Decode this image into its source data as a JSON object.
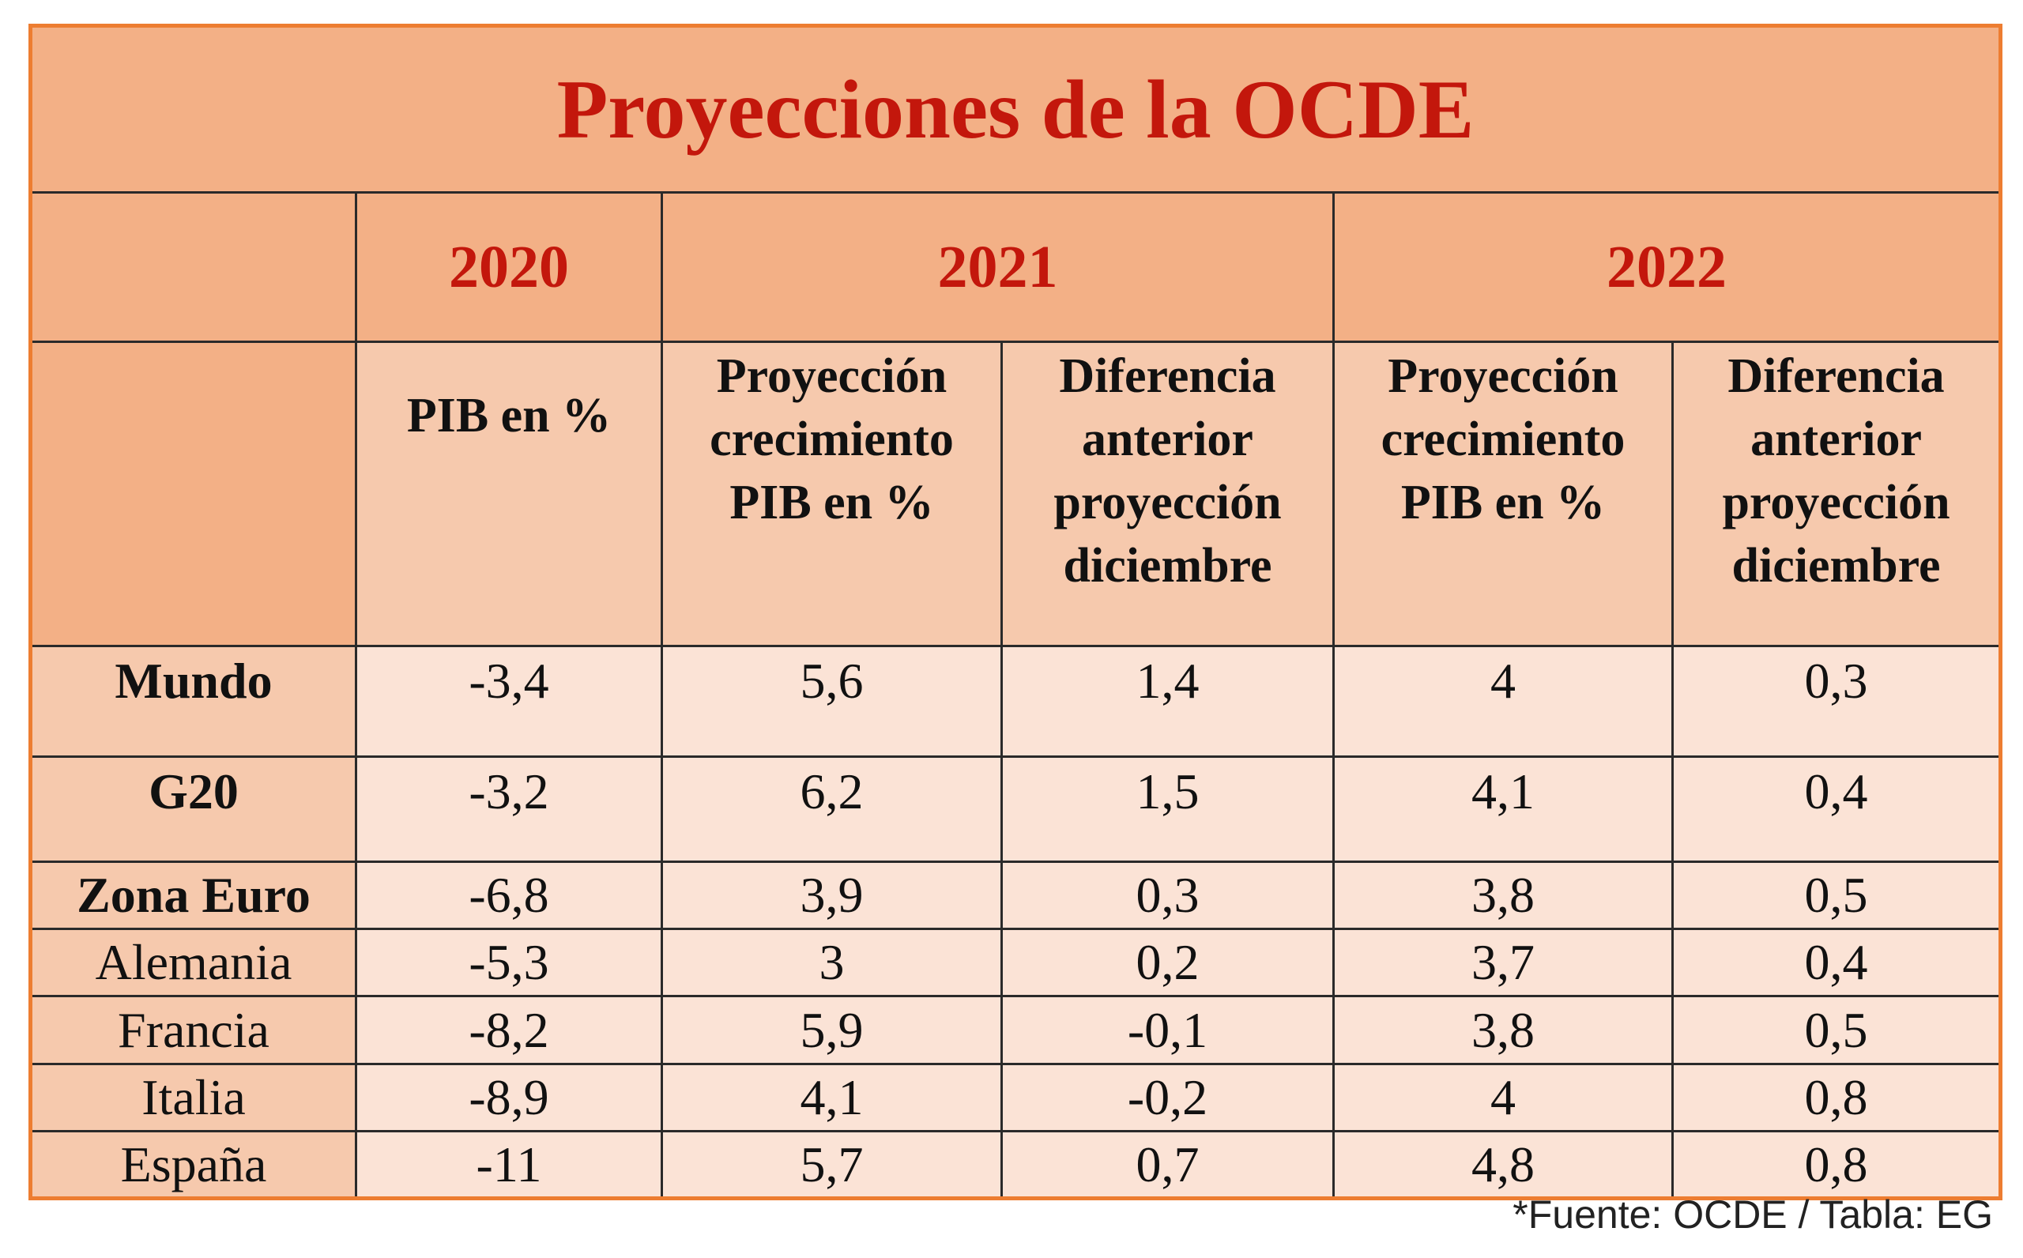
{
  "title": "Proyecciones de la OCDE",
  "years": [
    "2020",
    "2021",
    "2022"
  ],
  "subheaders": {
    "pib_2020": "PIB en %",
    "proj_2021": [
      "Proyección",
      "crecimiento",
      "PIB en %"
    ],
    "diff_2021": [
      "Diferencia",
      "anterior",
      "proyección",
      "diciembre"
    ],
    "proj_2022": [
      "Proyección",
      "crecimiento",
      "PIB en %"
    ],
    "diff_2022": [
      "Diferencia",
      "anterior",
      "proyección",
      "diciembre"
    ]
  },
  "rows": [
    {
      "label": "Mundo",
      "values": [
        "-3,4",
        "5,6",
        "1,4",
        "4",
        "0,3"
      ]
    },
    {
      "label": "G20",
      "values": [
        "-3,2",
        "6,2",
        "1,5",
        "4,1",
        "0,4"
      ]
    },
    {
      "label": "Zona Euro",
      "values": [
        "-6,8",
        "3,9",
        "0,3",
        "3,8",
        "0,5"
      ]
    },
    {
      "label": "Alemania",
      "values": [
        "-5,3",
        "3",
        "0,2",
        "3,7",
        "0,4"
      ]
    },
    {
      "label": "Francia",
      "values": [
        "-8,2",
        "5,9",
        "-0,1",
        "3,8",
        "0,5"
      ]
    },
    {
      "label": "Italia",
      "values": [
        "-8,9",
        "4,1",
        "-0,2",
        "4",
        "0,8"
      ]
    },
    {
      "label": "España",
      "values": [
        "-11",
        "5,7",
        "0,7",
        "4,8",
        "0,8"
      ]
    }
  ],
  "footer": "*Fuente: OCDE / Tabla: EG",
  "colors": {
    "border": "#ed7d31",
    "title": "#c3170c",
    "header_bg": "#f3b086",
    "subheader_bg": "#f6c9ad",
    "cell_bg": "#fbe3d6"
  }
}
